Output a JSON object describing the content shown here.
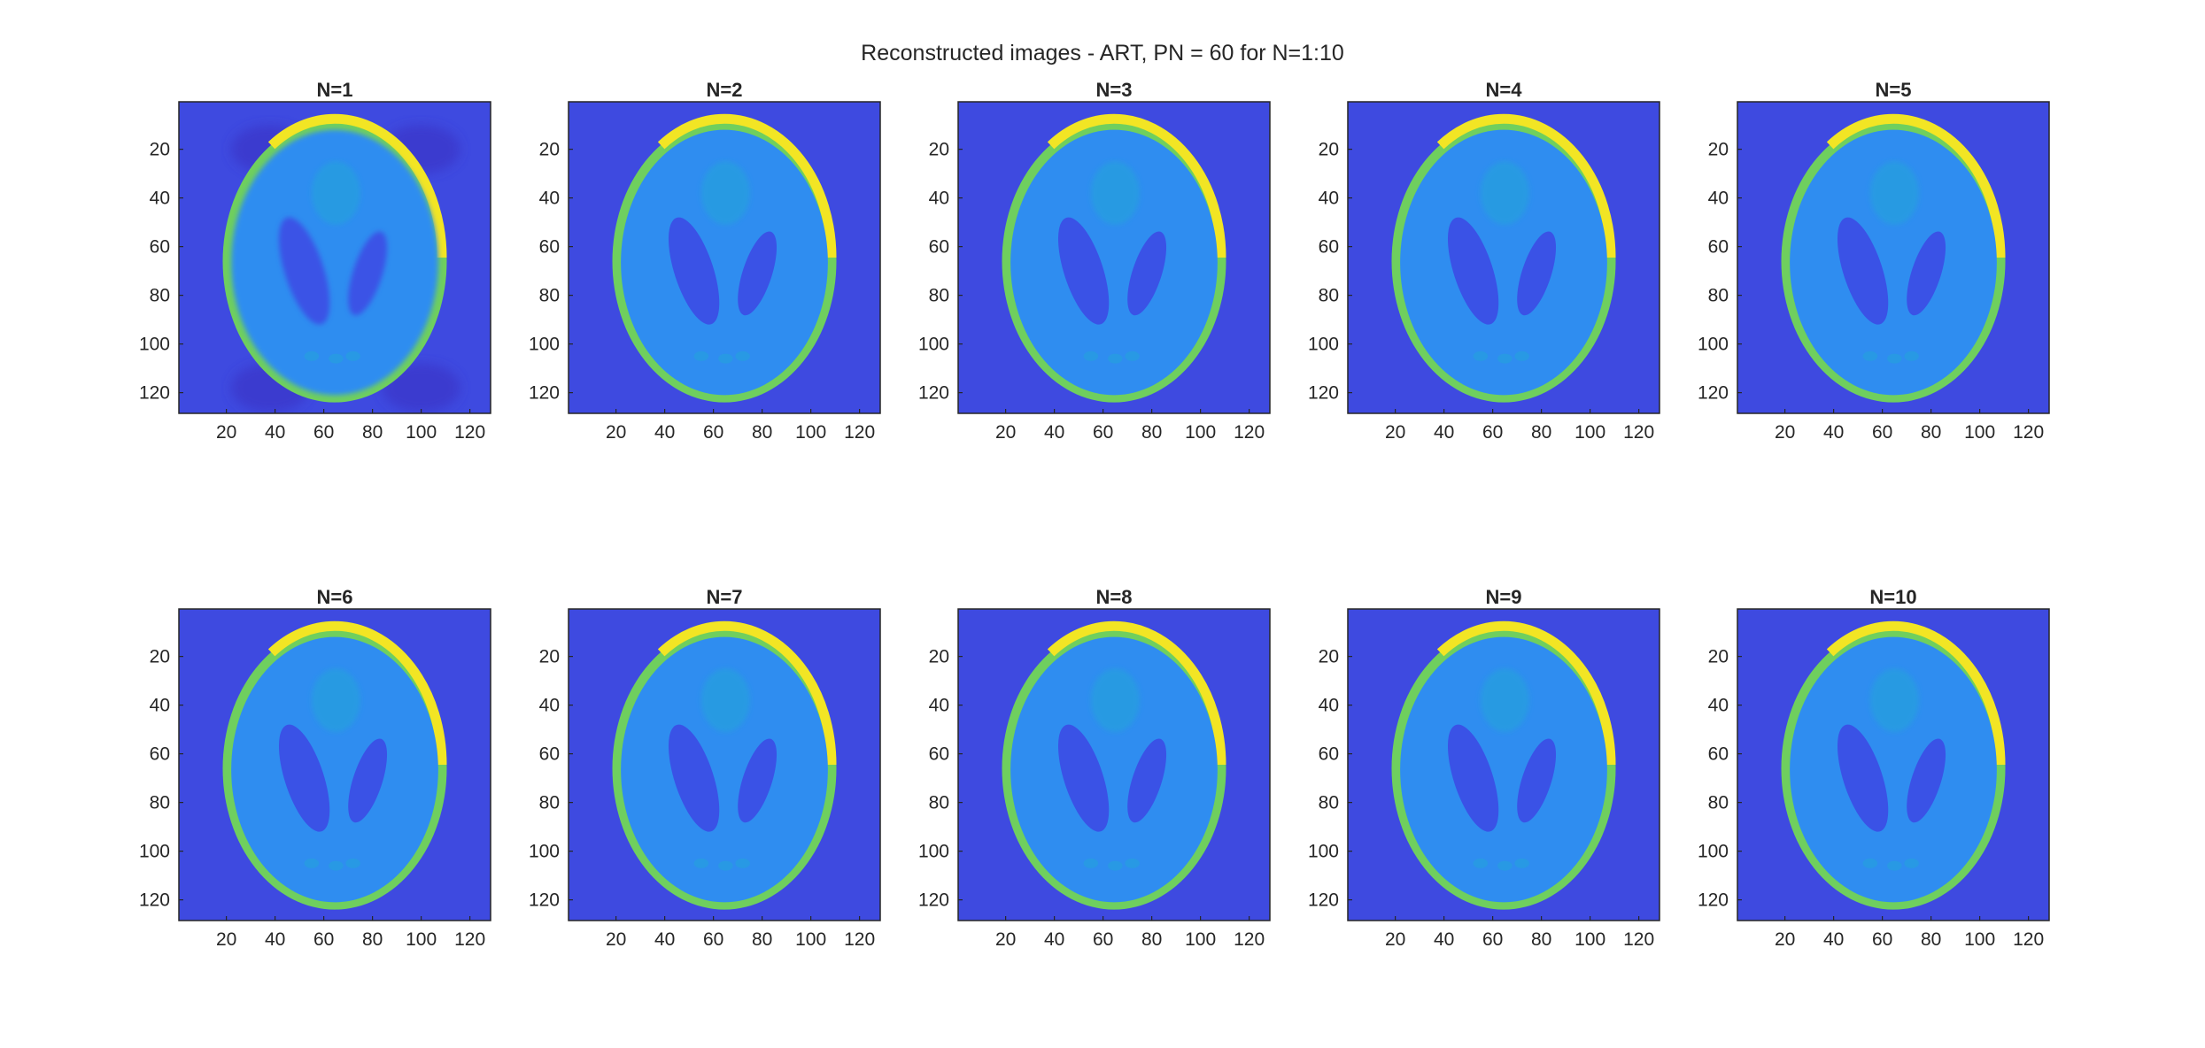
{
  "figure": {
    "title": "Reconstructed images - ART, PN = 60 for N=1:10"
  },
  "chart_data": {
    "type": "heatmap",
    "description_units": "pixel index",
    "grid": false,
    "image_size": [
      128,
      128
    ],
    "x_ticks": [
      "20",
      "40",
      "60",
      "80",
      "100",
      "120"
    ],
    "y_ticks": [
      "20",
      "40",
      "60",
      "80",
      "100",
      "120"
    ],
    "x_tick_values": [
      20,
      40,
      60,
      80,
      100,
      120
    ],
    "y_tick_values": [
      20,
      40,
      60,
      80,
      100,
      120
    ],
    "xlim": [
      0.5,
      128.5
    ],
    "ylim": [
      0.5,
      128.5
    ],
    "y_direction": "reverse",
    "colormap": "parula",
    "colors": {
      "background": "#3E4AE0",
      "ellipse_fill": "#2F8DF0",
      "ventricles": "#3A52E6",
      "upper_blob": "#22A6D8",
      "rim_mid": "#6FCF5E",
      "rim_top": "#F2E524",
      "axes_edge": "#262626"
    },
    "panels": [
      {
        "title": "N=1",
        "iteration": 1
      },
      {
        "title": "N=2",
        "iteration": 2
      },
      {
        "title": "N=3",
        "iteration": 3
      },
      {
        "title": "N=4",
        "iteration": 4
      },
      {
        "title": "N=5",
        "iteration": 5
      },
      {
        "title": "N=6",
        "iteration": 6
      },
      {
        "title": "N=7",
        "iteration": 7
      },
      {
        "title": "N=8",
        "iteration": 8
      },
      {
        "title": "N=9",
        "iteration": 9
      },
      {
        "title": "N=10",
        "iteration": 10
      }
    ]
  }
}
